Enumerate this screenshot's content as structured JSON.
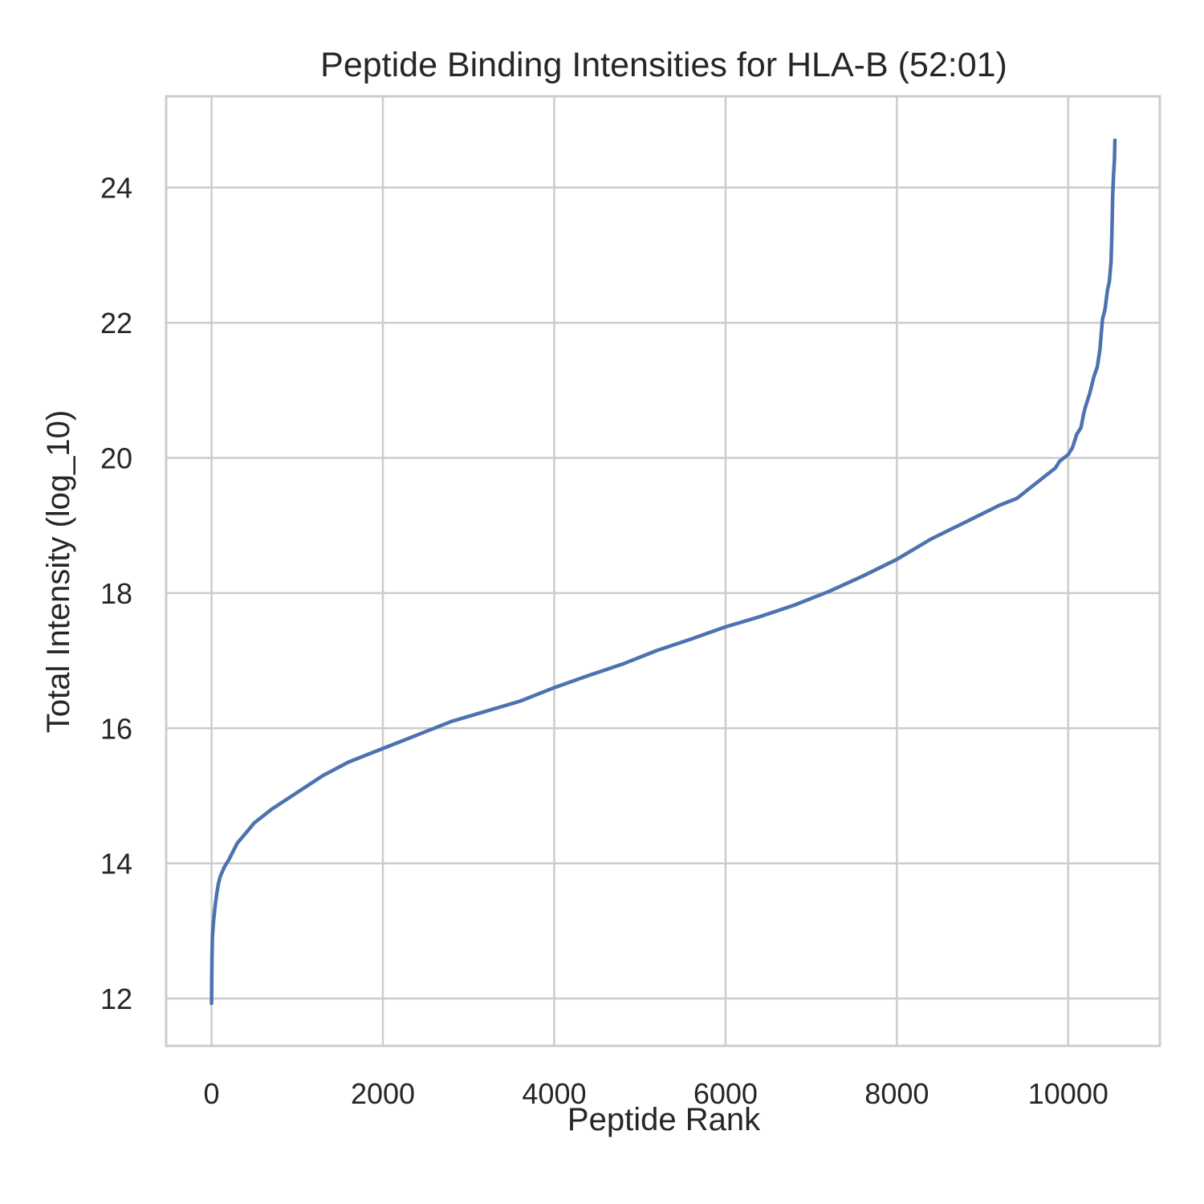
{
  "chart_data": {
    "type": "line",
    "title": "Peptide Binding Intensities for HLA-B (52:01)",
    "xlabel": "Peptide Rank",
    "ylabel": "Total Intensity (log_10)",
    "xlim": [
      -530,
      11070
    ],
    "ylim": [
      11.3,
      25.35
    ],
    "xticks": [
      0,
      2000,
      4000,
      6000,
      8000,
      10000
    ],
    "yticks": [
      12,
      14,
      16,
      18,
      20,
      22,
      24
    ],
    "grid": true,
    "color": "#4c72b0",
    "series": [
      {
        "x": [
          0,
          2,
          5,
          10,
          20,
          40,
          60,
          80,
          100,
          150,
          200,
          300,
          400,
          500,
          700,
          1000,
          1300,
          1600,
          2000,
          2400,
          2800,
          3200,
          3600,
          4000,
          4400,
          4800,
          5200,
          5600,
          6000,
          6400,
          6800,
          7200,
          7600,
          8000,
          8400,
          8800,
          9200,
          9400,
          9600,
          9750,
          9850,
          9900,
          9950,
          10000,
          10050,
          10100,
          10150,
          10180,
          10200,
          10250,
          10300,
          10340,
          10370,
          10400,
          10430,
          10460,
          10480,
          10500,
          10510,
          10520,
          10530,
          10540,
          10545
        ],
        "y": [
          11.93,
          12.3,
          12.6,
          12.9,
          13.1,
          13.35,
          13.55,
          13.7,
          13.8,
          13.95,
          14.05,
          14.3,
          14.45,
          14.6,
          14.8,
          15.05,
          15.3,
          15.5,
          15.7,
          15.9,
          16.1,
          16.25,
          16.4,
          16.6,
          16.78,
          16.95,
          17.15,
          17.32,
          17.5,
          17.65,
          17.82,
          18.02,
          18.25,
          18.5,
          18.8,
          19.05,
          19.3,
          19.4,
          19.6,
          19.75,
          19.85,
          19.95,
          20.0,
          20.05,
          20.15,
          20.35,
          20.45,
          20.65,
          20.75,
          20.95,
          21.2,
          21.35,
          21.6,
          22.05,
          22.2,
          22.5,
          22.6,
          22.9,
          23.3,
          23.9,
          24.2,
          24.4,
          24.7
        ]
      }
    ]
  }
}
